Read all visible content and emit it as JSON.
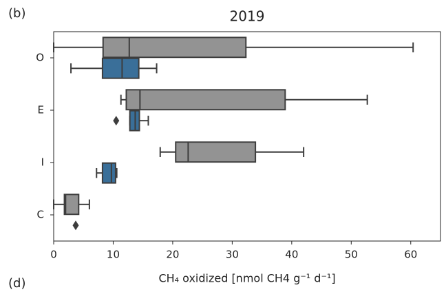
{
  "panel_label_top": "(b)",
  "panel_label_bottom": "(d)",
  "chart_data": {
    "type": "boxplot",
    "title": "2019",
    "xlabel": "CH₄ oxidized [nmol CH4 g⁻¹ d⁻¹]",
    "categories": [
      "O",
      "E",
      "I",
      "C"
    ],
    "xlim": [
      0,
      65
    ],
    "xticks": [
      0,
      10,
      20,
      30,
      40,
      50,
      60
    ],
    "edge_color": "#3d3d3d",
    "series": [
      {
        "color": "#939393",
        "min": [
          0,
          11.3,
          17.9,
          0
        ],
        "q1": [
          8.3,
          12.2,
          20.5,
          1.8
        ],
        "median": [
          12.7,
          14.5,
          22.6,
          2.0
        ],
        "q3": [
          32.3,
          38.9,
          33.9,
          4.2
        ],
        "max": [
          60.4,
          52.7,
          42,
          6.0
        ],
        "outliers": [
          [],
          [],
          [],
          []
        ]
      },
      {
        "color": "#3a6f99",
        "min": [
          2.9,
          12.8,
          7.2,
          null
        ],
        "q1": [
          8.2,
          12.8,
          8.2,
          null
        ],
        "median": [
          11.5,
          13.7,
          9.7,
          null
        ],
        "q3": [
          14.3,
          14.4,
          10.4,
          null
        ],
        "max": [
          17.3,
          15.9,
          10.6,
          null
        ],
        "outliers": [
          [],
          [
            10.5
          ],
          [],
          [
            3.7
          ]
        ]
      }
    ]
  }
}
